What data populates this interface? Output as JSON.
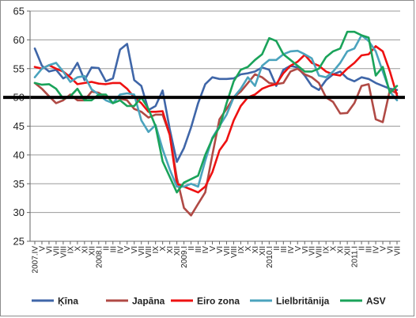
{
  "chart_data": {
    "type": "line",
    "ylim": [
      25,
      65
    ],
    "y_ticks": [
      25,
      30,
      35,
      40,
      45,
      50,
      55,
      60,
      65
    ],
    "threshold": 50,
    "grid": "horizontal",
    "legend_position": "bottom",
    "x_tick_labels": [
      "2007.IV",
      "V",
      "VI",
      "VII",
      "VIII",
      "IX",
      "X",
      "XI",
      "XII",
      "2008.I",
      "II",
      "III",
      "IV",
      "V",
      "VI",
      "VII",
      "VIII",
      "IX",
      "X",
      "XI",
      "XII",
      "2009.I",
      "II",
      "III",
      "IV",
      "V",
      "VI",
      "VII",
      "VIII",
      "IX",
      "X",
      "XI",
      "XII",
      "2010.I",
      "II",
      "III",
      "IV",
      "V",
      "VI",
      "VII",
      "VIII",
      "IX",
      "X",
      "XI",
      "XII",
      "2011.I",
      "II",
      "III",
      "IV",
      "V",
      "VI",
      "VII"
    ],
    "series": [
      {
        "name": "Ķīna",
        "color": "#3f66a8",
        "values": [
          58.5,
          55.5,
          54.5,
          54.8,
          53.3,
          54,
          56,
          53,
          55.2,
          55.1,
          52.8,
          53.3,
          58.3,
          59.3,
          53,
          52,
          47.8,
          48.5,
          51.2,
          44.5,
          38.8,
          41.2,
          44.8,
          49,
          52.3,
          53.5,
          53.2,
          53.2,
          53.3,
          54,
          54.2,
          54.5,
          55.2,
          54.8,
          52,
          54.8,
          55.5,
          55.2,
          53.8,
          52,
          51.3,
          53,
          54,
          54.5,
          53.3,
          52.8,
          53.5,
          53.2,
          52.5,
          52,
          51.5,
          51.3
        ]
      },
      {
        "name": "Japāna",
        "color": "#b04a45",
        "values": [
          52.5,
          51.5,
          50.2,
          49,
          49.5,
          50.5,
          49.5,
          49.5,
          51,
          50.8,
          50,
          50,
          49.8,
          49.5,
          48,
          47.5,
          46.5,
          47,
          47,
          43.5,
          36,
          30.8,
          29.5,
          31.5,
          33.5,
          40,
          46.2,
          48,
          50,
          51,
          52.5,
          54,
          53.5,
          52.5,
          52.3,
          52.5,
          54.5,
          55,
          54,
          53.5,
          52.5,
          50,
          49.2,
          47.2,
          47.3,
          49,
          52,
          52.3,
          46.2,
          45.7,
          51.3,
          50.7
        ]
      },
      {
        "name": "Eiro zona",
        "color": "#ee1111",
        "values": [
          55.3,
          55,
          55.6,
          55,
          54.5,
          53.5,
          52.3,
          52.5,
          52.7,
          52.4,
          52.3,
          52.5,
          52.5,
          51.5,
          50,
          49,
          47.5,
          47.5,
          47.6,
          43.5,
          35,
          34.5,
          34,
          33.5,
          34.5,
          37,
          40.8,
          42.5,
          46,
          48.5,
          50,
          50.5,
          51.5,
          52,
          52.3,
          54.2,
          55.5,
          56.2,
          57.4,
          56,
          55.5,
          54.5,
          54,
          53.8,
          55,
          56,
          57.3,
          57.5,
          58.9,
          58,
          54.5,
          50.3
        ]
      },
      {
        "name": "Lielbritānija",
        "color": "#4ba3bd",
        "values": [
          53.5,
          55,
          55.6,
          56,
          54.5,
          52.7,
          53.5,
          53.7,
          51.4,
          50.5,
          49.5,
          49,
          50.5,
          50.7,
          50.5,
          46,
          44,
          45.2,
          41,
          37.5,
          34.5,
          34.5,
          35,
          34.5,
          39,
          43,
          45,
          47,
          50,
          51.5,
          53.5,
          52,
          55.5,
          56.5,
          56.5,
          57.5,
          58,
          58.1,
          57.5,
          56.8,
          53.8,
          53.5,
          54.5,
          56,
          58,
          58.5,
          60.8,
          59.8,
          58,
          54.5,
          51,
          49.5
        ]
      },
      {
        "name": "ASV",
        "color": "#1aa35a",
        "values": [
          52.5,
          52.2,
          52.3,
          51.5,
          49.8,
          50.2,
          51.5,
          49.5,
          49.5,
          50.5,
          50.5,
          49,
          49.5,
          48.5,
          48.5,
          50,
          48,
          45,
          38.9,
          36.2,
          33.5,
          35.2,
          35.8,
          36.4,
          40,
          42.8,
          44.8,
          49,
          52.8,
          54.8,
          55.3,
          56.5,
          57.5,
          60.3,
          59.8,
          57.5,
          56.5,
          55.5,
          54.5,
          54.5,
          55,
          57,
          58,
          58.5,
          61.4,
          61.4,
          60.8,
          60.4,
          53.8,
          55.3,
          50.8,
          52
        ]
      }
    ]
  }
}
